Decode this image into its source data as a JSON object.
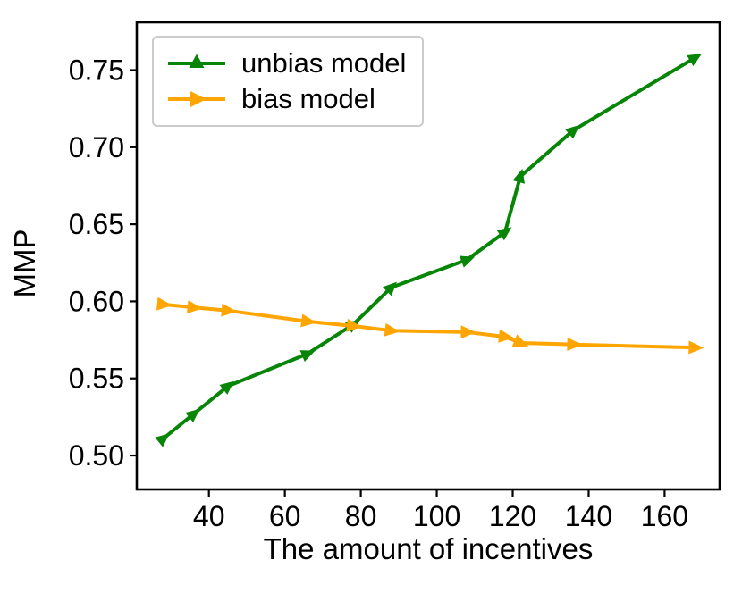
{
  "figure": {
    "background": "#ffffff",
    "axis_color": "#000000",
    "tick_label_color": "#000000"
  },
  "chart_data": {
    "type": "line",
    "title": "",
    "xlabel": "The amount of incentives",
    "ylabel": "MMP",
    "grid": false,
    "legend_position": "upper-left",
    "x": [
      28,
      36,
      45,
      66,
      78,
      88,
      108,
      118,
      122,
      136,
      168
    ],
    "series": [
      {
        "name": "unbias model",
        "color": "#078507",
        "marker": "triangle-up",
        "values": [
          0.511,
          0.527,
          0.545,
          0.566,
          0.585,
          0.609,
          0.627,
          0.645,
          0.681,
          0.711,
          0.758
        ]
      },
      {
        "name": "bias model",
        "color": "#ffa500",
        "marker": "triangle-right",
        "values": [
          0.598,
          0.596,
          0.594,
          0.587,
          0.584,
          0.581,
          0.58,
          0.577,
          0.573,
          0.572,
          0.57
        ]
      }
    ],
    "x_ticks": [
      40,
      60,
      80,
      100,
      120,
      140,
      160
    ],
    "y_ticks": [
      "0.50",
      "0.55",
      "0.60",
      "0.65",
      "0.70",
      "0.75"
    ],
    "xlim": [
      21,
      174.5
    ],
    "ylim": [
      0.478,
      0.781
    ]
  }
}
